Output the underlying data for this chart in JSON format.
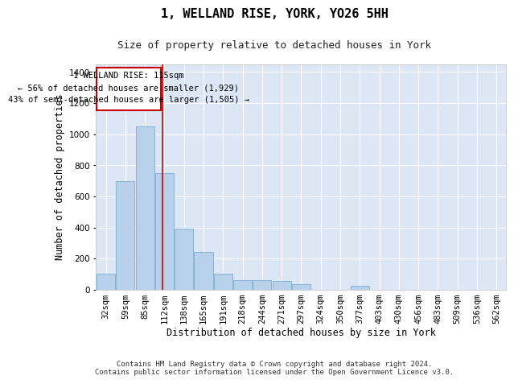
{
  "title": "1, WELLAND RISE, YORK, YO26 5HH",
  "subtitle": "Size of property relative to detached houses in York",
  "xlabel": "Distribution of detached houses by size in York",
  "ylabel": "Number of detached properties",
  "footer_line1": "Contains HM Land Registry data © Crown copyright and database right 2024.",
  "footer_line2": "Contains public sector information licensed under the Open Government Licence v3.0.",
  "categories": [
    "32sqm",
    "59sqm",
    "85sqm",
    "112sqm",
    "138sqm",
    "165sqm",
    "191sqm",
    "218sqm",
    "244sqm",
    "271sqm",
    "297sqm",
    "324sqm",
    "350sqm",
    "377sqm",
    "403sqm",
    "430sqm",
    "456sqm",
    "483sqm",
    "509sqm",
    "536sqm",
    "562sqm"
  ],
  "values": [
    100,
    700,
    1050,
    750,
    395,
    240,
    100,
    62,
    60,
    55,
    35,
    0,
    0,
    25,
    0,
    0,
    0,
    0,
    0,
    0,
    0
  ],
  "bar_color": "#b8d0ea",
  "bar_edge_color": "#7aaed0",
  "background_color": "#dce6f5",
  "grid_color": "#ffffff",
  "ylim": [
    0,
    1450
  ],
  "yticks": [
    0,
    200,
    400,
    600,
    800,
    1000,
    1200,
    1400
  ],
  "red_line_x": 2.88,
  "annotation_text_line1": "1 WELLAND RISE: 115sqm",
  "annotation_text_line2": "← 56% of detached houses are smaller (1,929)",
  "annotation_text_line3": "43% of semi-detached houses are larger (1,505) →",
  "annotation_box_color": "#ffffff",
  "annotation_border_color": "#cc0000",
  "title_fontsize": 11,
  "subtitle_fontsize": 9,
  "annotation_fontsize": 7.5,
  "tick_fontsize": 7.5,
  "label_fontsize": 8.5,
  "footer_fontsize": 6.5
}
